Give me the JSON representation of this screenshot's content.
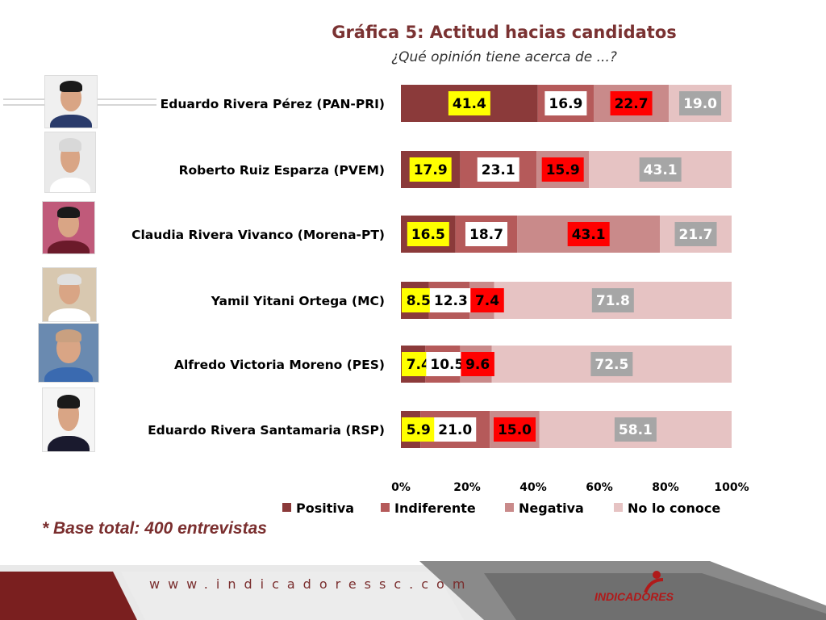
{
  "header": {
    "title": "Gráfica  5: Actitud hacias candidatos",
    "subtitle": "¿Qué opinión tiene acerca de ...?"
  },
  "chart_data": {
    "type": "bar",
    "orientation": "horizontal",
    "stacked": true,
    "categories": [
      "Eduardo Rivera Pérez (PAN-PRI)",
      "Roberto Ruiz Esparza (PVEM)",
      "Claudia Rivera Vivanco (Morena-PT)",
      "Yamil Yitani Ortega (MC)",
      "Alfredo Victoria Moreno (PES)",
      "Eduardo Rivera Santamaria (RSP)"
    ],
    "series": [
      {
        "name": "Positiva",
        "values": [
          41.4,
          17.9,
          16.5,
          8.5,
          7.4,
          5.9
        ],
        "color": "#8b3a3a",
        "label_bg": "#ffff00",
        "label_color": "#000000"
      },
      {
        "name": "Indiferente",
        "values": [
          16.9,
          23.1,
          18.7,
          12.3,
          10.5,
          21.0
        ],
        "color": "#b55a5a",
        "label_bg": "#ffffff",
        "label_color": "#000000"
      },
      {
        "name": "Negativa",
        "values": [
          22.7,
          15.9,
          43.1,
          7.4,
          9.6,
          15.0
        ],
        "color": "#c98a8a",
        "label_bg": "#ff0000",
        "label_color": "#000000"
      },
      {
        "name": "No lo conoce",
        "values": [
          19.0,
          43.1,
          21.7,
          71.8,
          72.5,
          58.1
        ],
        "color": "#e6c3c3",
        "label_bg": "#a6a6a6",
        "label_color": "#ffffff"
      }
    ],
    "xlim": [
      0,
      100
    ],
    "x_ticks": [
      "0%",
      "20%",
      "40%",
      "60%",
      "80%",
      "100%"
    ],
    "legend_position": "bottom",
    "grid": false
  },
  "photos": [
    {
      "bg": "#f0f0f0",
      "suit": "#2a3b6b",
      "hair": "#1a1a1a"
    },
    {
      "bg": "#eaeaea",
      "suit": "#ffffff",
      "hair": "#d8d8d8"
    },
    {
      "bg": "#c05a7a",
      "suit": "#6b1a2a",
      "hair": "#1a1a1a"
    },
    {
      "bg": "#d8c8b0",
      "suit": "#ffffff",
      "hair": "#e0e0e0"
    },
    {
      "bg": "#6a8ab0",
      "suit": "#3a6ab0",
      "hair": "#c9a080"
    },
    {
      "bg": "#f5f5f5",
      "suit": "#1a1a2e",
      "hair": "#1a1a1a"
    }
  ],
  "note": "* Base total: 400 entrevistas",
  "footer": {
    "url": "www.indicadoressc.com",
    "logo": "INDICADORES"
  }
}
